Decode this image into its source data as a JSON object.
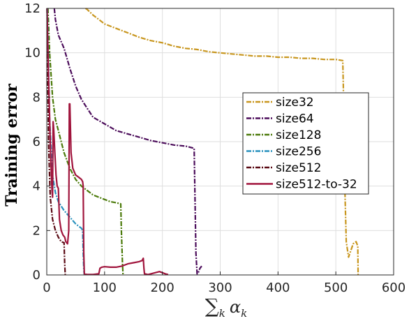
{
  "chart_data": {
    "type": "line",
    "title": "",
    "xlabel": "∑k αk",
    "ylabel": "Training error",
    "xlim": [
      0,
      600
    ],
    "ylim": [
      0,
      12
    ],
    "xticks": [
      0,
      100,
      200,
      300,
      400,
      500,
      600
    ],
    "yticks": [
      0,
      2,
      4,
      6,
      8,
      10,
      12
    ],
    "grid": true,
    "legend_position": "right",
    "series": [
      {
        "name": "size32",
        "color": "#c8961e",
        "style": "dashdot",
        "x": [
          67,
          70,
          80,
          90,
          100,
          120,
          140,
          160,
          180,
          200,
          220,
          240,
          260,
          280,
          300,
          320,
          340,
          360,
          380,
          400,
          420,
          440,
          460,
          480,
          500,
          512,
          513,
          515,
          518,
          522,
          526,
          530,
          535,
          538,
          538.5
        ],
        "y": [
          12.0,
          11.95,
          11.7,
          11.5,
          11.3,
          11.1,
          10.9,
          10.7,
          10.55,
          10.45,
          10.3,
          10.2,
          10.15,
          10.05,
          10.0,
          9.95,
          9.9,
          9.85,
          9.85,
          9.8,
          9.8,
          9.75,
          9.75,
          9.7,
          9.7,
          9.65,
          8.5,
          4.5,
          1.5,
          0.8,
          1.1,
          1.4,
          1.5,
          1.3,
          0.0
        ]
      },
      {
        "name": "size64",
        "color": "#4b0c5a",
        "style": "dashdot",
        "x": [
          13,
          15,
          20,
          30,
          40,
          50,
          60,
          70,
          80,
          100,
          120,
          140,
          160,
          180,
          200,
          220,
          240,
          255,
          256,
          258,
          260,
          262,
          265,
          268
        ],
        "y": [
          12.0,
          11.5,
          10.8,
          10.2,
          9.3,
          8.5,
          7.9,
          7.5,
          7.1,
          6.8,
          6.5,
          6.35,
          6.2,
          6.05,
          5.95,
          5.85,
          5.8,
          5.7,
          4.0,
          1.0,
          0.05,
          0.1,
          0.3,
          0.4
        ]
      },
      {
        "name": "size128",
        "color": "#4b7a0a",
        "style": "dashdot",
        "x": [
          2,
          5,
          10,
          15,
          20,
          30,
          40,
          50,
          60,
          70,
          80,
          90,
          100,
          110,
          120,
          128,
          129,
          131,
          132
        ],
        "y": [
          12.0,
          10.0,
          8.0,
          7.0,
          6.5,
          5.5,
          4.8,
          4.3,
          4.0,
          3.8,
          3.6,
          3.5,
          3.4,
          3.3,
          3.25,
          3.2,
          2.0,
          0.5,
          0.0
        ]
      },
      {
        "name": "size256",
        "color": "#2891bd",
        "style": "dashdot",
        "x": [
          1,
          5,
          10,
          15,
          20,
          30,
          35,
          40,
          50,
          60,
          62,
          63,
          64,
          65
        ],
        "y": [
          12.0,
          7.0,
          4.5,
          3.7,
          3.3,
          2.9,
          2.75,
          2.6,
          2.3,
          2.1,
          2.0,
          1.0,
          0.3,
          0.0
        ]
      },
      {
        "name": "size512",
        "color": "#5a0a14",
        "style": "dashdot",
        "x": [
          0.5,
          3,
          6,
          10,
          15,
          20,
          25,
          30,
          31,
          32
        ],
        "y": [
          12.0,
          6.0,
          3.5,
          2.5,
          2.0,
          1.7,
          1.5,
          1.45,
          0.5,
          0.0
        ]
      },
      {
        "name": "size512-to-32",
        "color": "#a0143c",
        "style": "solid",
        "x": [
          0.5,
          3,
          6,
          8,
          9,
          10,
          11,
          12,
          14,
          16,
          18,
          20,
          22,
          25,
          28,
          31,
          33,
          36,
          38,
          39,
          40,
          42,
          45,
          50,
          55,
          60,
          62,
          63,
          64,
          65,
          70,
          80,
          90,
          92,
          95,
          100,
          110,
          120,
          130,
          140,
          150,
          160,
          165,
          167,
          168,
          169,
          170,
          175,
          180,
          195,
          200,
          205,
          210
        ],
        "y": [
          12.0,
          9.0,
          6.0,
          4.5,
          3.8,
          3.5,
          6.9,
          6.6,
          5.5,
          4.5,
          4.0,
          3.9,
          2.5,
          2.0,
          1.8,
          1.7,
          1.5,
          1.4,
          2.0,
          7.7,
          7.7,
          5.5,
          4.8,
          4.5,
          4.4,
          4.3,
          4.2,
          4.0,
          1.0,
          0.05,
          0.02,
          0.02,
          0.05,
          0.3,
          0.35,
          0.37,
          0.35,
          0.35,
          0.4,
          0.5,
          0.55,
          0.6,
          0.65,
          0.75,
          0.3,
          0.05,
          0.05,
          0.02,
          0.05,
          0.15,
          0.1,
          0.05,
          0.02
        ]
      }
    ]
  }
}
